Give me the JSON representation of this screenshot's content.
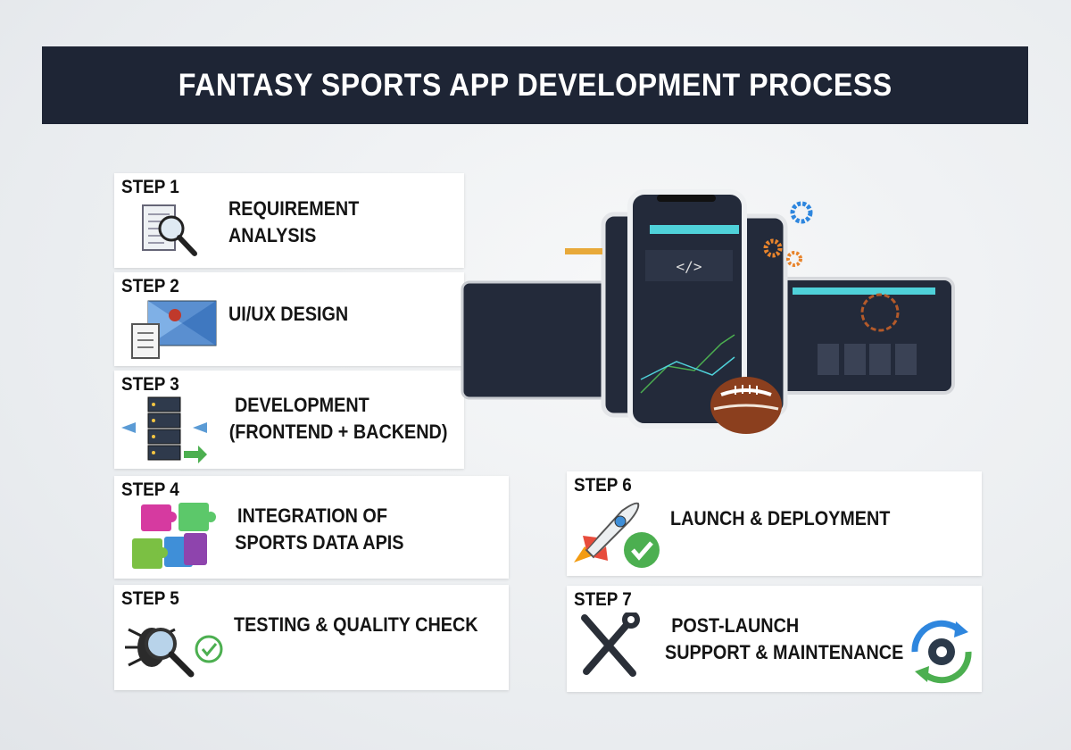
{
  "title": "FANTASY SPORTS APP DEVELOPMENT PROCESS",
  "steps": [
    {
      "step": "STEP 1",
      "label_lines": [
        "REQUIREMENT",
        "ANALYSIS"
      ],
      "icon": "document-magnifier-icon"
    },
    {
      "step": "STEP 2",
      "label_lines": [
        "UI/UX DESIGN"
      ],
      "icon": "design-wireframe-icon"
    },
    {
      "step": "STEP 3",
      "label_lines": [
        "DEVELOPMENT",
        "(FRONTEND + BACKEND)"
      ],
      "icon": "server-stack-icon"
    },
    {
      "step": "STEP 4",
      "label_lines": [
        "INTEGRATION OF",
        "SPORTS DATA APIS"
      ],
      "icon": "puzzle-pieces-icon"
    },
    {
      "step": "STEP 5",
      "label_lines": [
        "TESTING & QUALITY CHECK"
      ],
      "icon": "bug-magnifier-check-icon"
    },
    {
      "step": "STEP 6",
      "label_lines": [
        "LAUNCH & DEPLOYMENT"
      ],
      "icon": "rocket-check-icon"
    },
    {
      "step": "STEP 7",
      "label_lines": [
        "POST-LAUNCH",
        "SUPPORT & MAINTENANCE"
      ],
      "icon": "tools-gear-cycle-icon"
    }
  ],
  "colors": {
    "title_bar": "#1e2535",
    "screen": "#232a3a",
    "accent_teal": "#4fd1d9",
    "accent_orange": "#e8842c",
    "football": "#8b3f1e"
  }
}
